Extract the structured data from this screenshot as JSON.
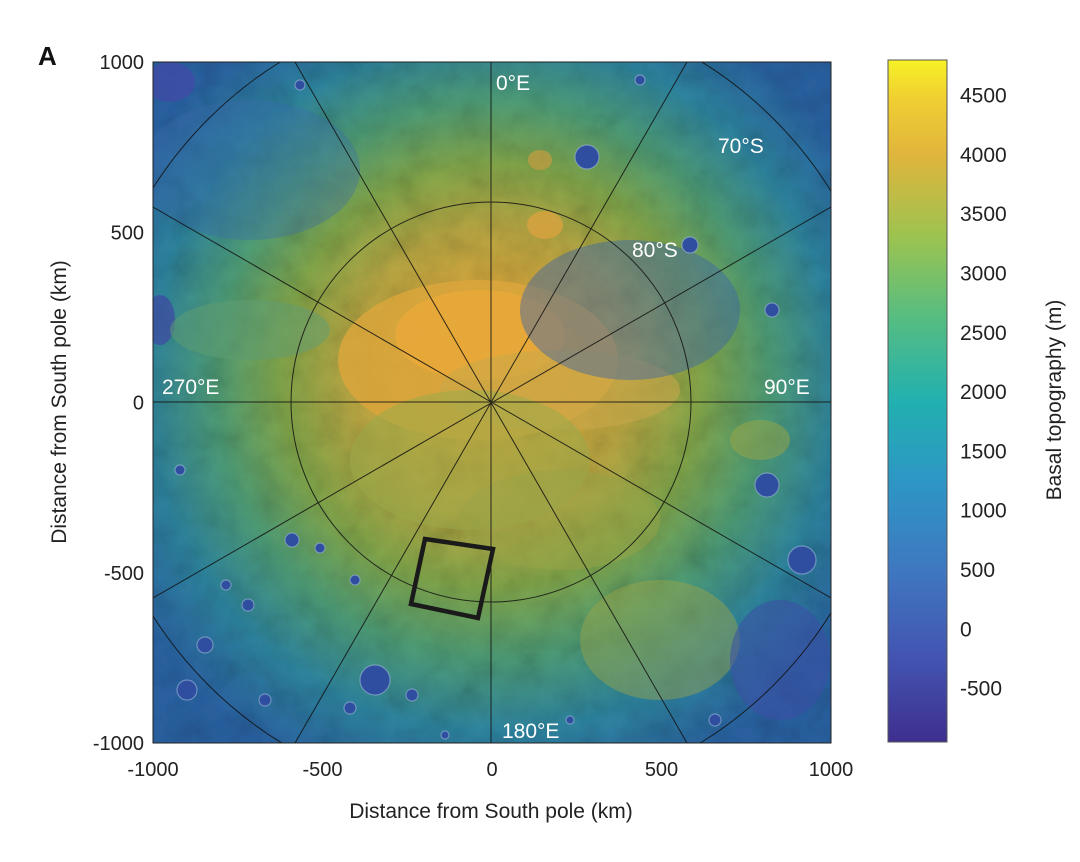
{
  "panel_label": "A",
  "map": {
    "type": "polar-stereographic-topography",
    "region": "Martian south polar region",
    "colors": {
      "low": "#3b3f9c",
      "mid": "#2a9b8f",
      "high": "#e8a838",
      "peak": "#f2ea3a",
      "overlay_lines": "#111111",
      "study_box": "#1a1a1a"
    }
  },
  "axes": {
    "x_label": "Distance from South pole (km)",
    "y_label": "Distance from South pole (km)",
    "x_ticks": [
      "-1000",
      "-500",
      "0",
      "500",
      "1000"
    ],
    "y_ticks": [
      "1000",
      "500",
      "0",
      "-500",
      "-1000"
    ],
    "x_range": [
      -1000,
      1000
    ],
    "y_range": [
      -1000,
      1000
    ]
  },
  "overlay_labels": {
    "lon_0": "0°E",
    "lon_90": "90°E",
    "lon_180": "180°E",
    "lon_270": "270°E",
    "lat_80": "80°S",
    "lat_70": "70°S"
  },
  "colorbar": {
    "label": "Basal topography (m)",
    "ticks": [
      "4500",
      "4000",
      "3500",
      "3000",
      "2500",
      "2000",
      "1500",
      "1000",
      "500",
      "0",
      "-500"
    ],
    "range": [
      -950,
      4800
    ]
  }
}
